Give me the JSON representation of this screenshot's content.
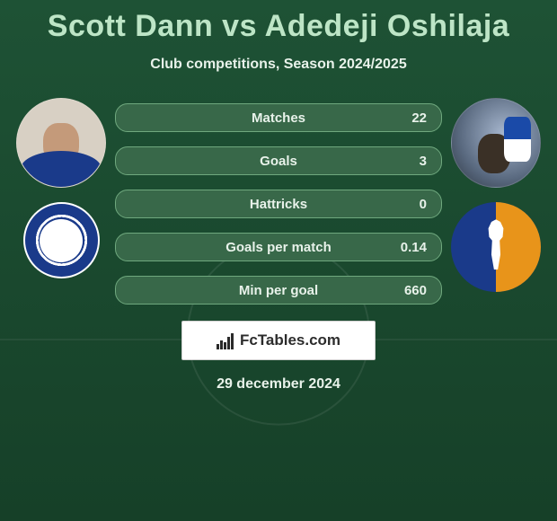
{
  "title": "Scott Dann vs Adedeji Oshilaja",
  "subtitle": "Club competitions, Season 2024/2025",
  "date": "29 december 2024",
  "brand": "FcTables.com",
  "colors": {
    "background": "#1a4a2e",
    "title_color": "#bde5c6",
    "text_color": "#e8f2ea",
    "stat_bg": "#386849",
    "stat_border": "#6fa87e",
    "stat_radius": 14,
    "stat_height": 32,
    "title_fontsize": 34,
    "subtitle_fontsize": 16,
    "label_fontsize": 15
  },
  "stats": [
    {
      "label": "Matches",
      "value": "22"
    },
    {
      "label": "Goals",
      "value": "3"
    },
    {
      "label": "Hattricks",
      "value": "0"
    },
    {
      "label": "Goals per match",
      "value": "0.14"
    },
    {
      "label": "Min per goal",
      "value": "660"
    }
  ],
  "players": {
    "left": {
      "name": "Scott Dann",
      "club": "Reading"
    },
    "right": {
      "name": "Adedeji Oshilaja",
      "club": "Mansfield Town"
    }
  }
}
